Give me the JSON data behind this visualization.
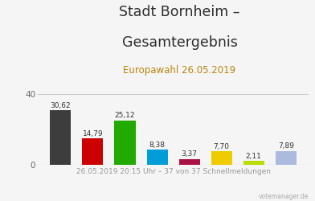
{
  "title_line1": "Stadt Bornheim –",
  "title_line2": "Gesamtergebnis",
  "subtitle": "Europawahl 26.05.2019",
  "xlabel": "26.05.2019 20:15 Uhr – 37 von 37 Schnellmeldungen",
  "watermark": "votemanager.de",
  "values": [
    30.62,
    14.79,
    25.12,
    8.38,
    3.37,
    7.7,
    2.11,
    7.89
  ],
  "labels": [
    "30,62",
    "14,79",
    "25,12",
    "8,38",
    "3,37",
    "7,70",
    "2,11",
    "7,89"
  ],
  "bar_colors": [
    "#3d3d3d",
    "#cc0000",
    "#22aa00",
    "#009dd9",
    "#aa1144",
    "#eecc00",
    "#bbdd00",
    "#aabbdd"
  ],
  "ylim": [
    0,
    43
  ],
  "yticks": [
    0,
    40
  ],
  "background_color": "#f5f5f5",
  "title_color": "#2d2d2d",
  "subtitle_color": "#b8860b",
  "xlabel_color": "#999999",
  "bar_label_color": "#333333",
  "watermark_color": "#aaaaaa",
  "title_fontsize": 12.5,
  "subtitle_fontsize": 8.5,
  "xlabel_fontsize": 6.5,
  "bar_label_fontsize": 6.5,
  "ytick_fontsize": 7.5
}
